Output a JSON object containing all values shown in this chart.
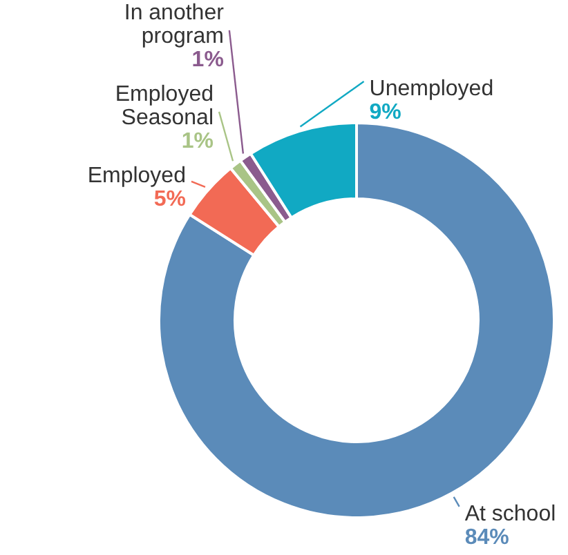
{
  "chart_data": {
    "type": "donut",
    "categories": [
      "At school",
      "Employed",
      "Employed Seasonal",
      "In another program",
      "Unemployed"
    ],
    "values": [
      84,
      5,
      1,
      1,
      9
    ],
    "value_labels": [
      "84%",
      "5%",
      "1%",
      "1%",
      "9%"
    ],
    "colors": [
      "#5b8bb9",
      "#f26a55",
      "#a9c486",
      "#8b5b8e",
      "#11a9c3"
    ]
  }
}
